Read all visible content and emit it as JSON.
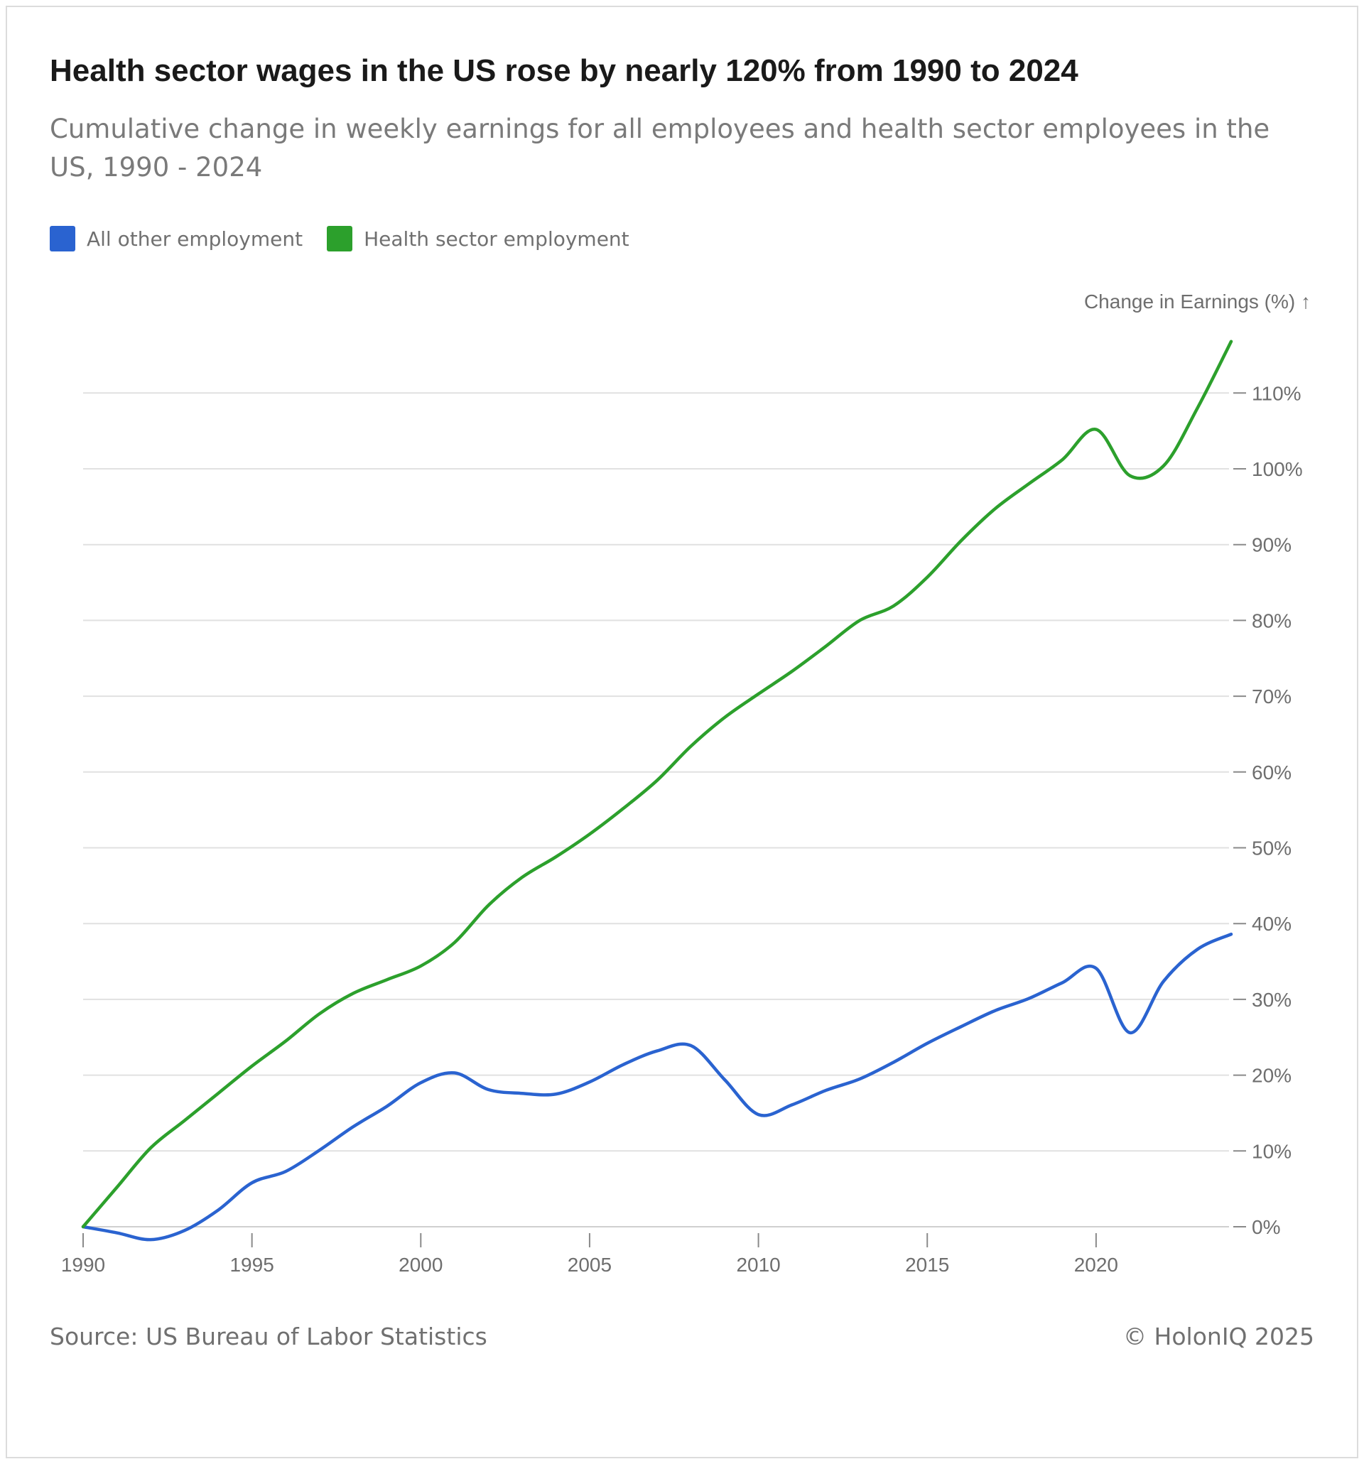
{
  "title": "Health sector wages in the US rose by nearly 120% from 1990 to 2024",
  "subtitle": "Cumulative change in weekly earnings for all employees and health sector employees in the US, 1990 - 2024",
  "source": "Source: US Bureau of Labor Statistics",
  "copyright": "© HolonIQ 2025",
  "chart_data": {
    "type": "line",
    "ylabel": "Change in Earnings (%) ↑",
    "xlim": [
      1990,
      2024
    ],
    "ylim": [
      0,
      110
    ],
    "x_ticks": [
      1990,
      1995,
      2000,
      2005,
      2010,
      2015,
      2020
    ],
    "x_tick_labels": [
      "1990",
      "1995",
      "2000",
      "2005",
      "2010",
      "2015",
      "2020"
    ],
    "y_ticks": [
      0,
      10,
      20,
      30,
      40,
      50,
      60,
      70,
      80,
      90,
      100,
      110
    ],
    "y_tick_labels": [
      "0%",
      "10%",
      "20%",
      "30%",
      "40%",
      "50%",
      "60%",
      "70%",
      "80%",
      "90%",
      "100%",
      "110%"
    ],
    "y_axis_position": "right",
    "grid": true,
    "legend_position": "top-left",
    "x": [
      1990,
      1991,
      1992,
      1993,
      1994,
      1995,
      1996,
      1997,
      1998,
      1999,
      2000,
      2001,
      2002,
      2003,
      2004,
      2005,
      2006,
      2007,
      2008,
      2009,
      2010,
      2011,
      2012,
      2013,
      2014,
      2015,
      2016,
      2017,
      2018,
      2019,
      2020,
      2021,
      2022,
      2023,
      2024
    ],
    "series": [
      {
        "name": "All other employment",
        "color": "#2a63d0",
        "values": [
          0,
          -0.8,
          -1.7,
          -0.5,
          2.2,
          5.8,
          7.3,
          10.1,
          13.2,
          15.9,
          19.0,
          20.3,
          18.1,
          17.6,
          17.5,
          19.1,
          21.4,
          23.2,
          23.9,
          19.4,
          14.8,
          16.1,
          18.0,
          19.5,
          21.7,
          24.2,
          26.4,
          28.5,
          30.1,
          32.2,
          34.1,
          25.6,
          32.4,
          36.6,
          38.6
        ]
      },
      {
        "name": "Health sector employment",
        "color": "#2ca02c",
        "values": [
          0,
          5.2,
          10.4,
          14.0,
          17.6,
          21.2,
          24.5,
          28.1,
          30.8,
          32.6,
          34.4,
          37.5,
          42.4,
          46.1,
          48.8,
          51.8,
          55.2,
          58.9,
          63.4,
          67.2,
          70.3,
          73.3,
          76.6,
          80.0,
          81.9,
          85.7,
          90.5,
          94.7,
          98.0,
          101.2,
          105.2,
          99.1,
          100.4,
          108.0,
          116.8
        ]
      }
    ]
  }
}
